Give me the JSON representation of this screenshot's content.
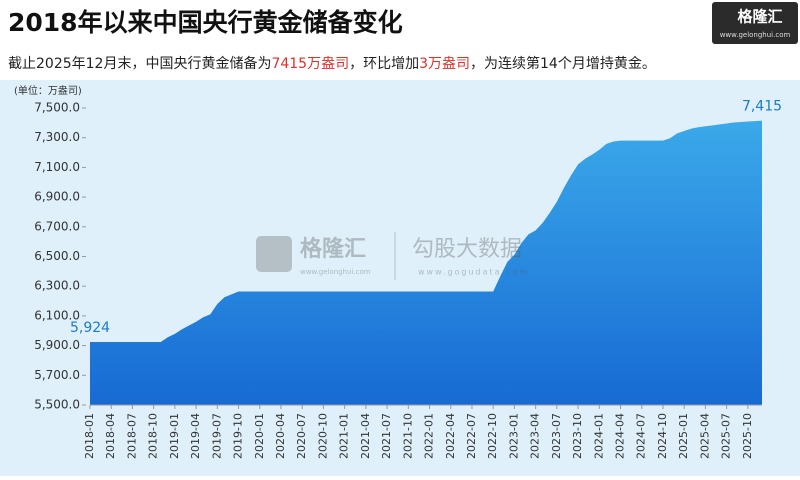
{
  "header": {
    "title": "2018年以来中国央行黄金储备变化",
    "logo": "格隆汇",
    "logo_url": "www.gelonghui.com",
    "subtitle": [
      "截止2025年12月末，中国央行黄金储备为",
      "7415万盎司",
      "，环比增加",
      "3万盎司",
      "，为连续第14个月增持黄金。"
    ]
  },
  "watermark": {
    "brand": "格隆汇",
    "brand_url": "www.gelonghui.com",
    "data_brand": "勾股大数据",
    "data_url": "www.gogudata.com"
  },
  "chart_data": {
    "type": "area",
    "y_label": "(单位：万盎司)",
    "color": "#2e8fe0",
    "categories": [
      "2018-01",
      null,
      null,
      "2018-04",
      null,
      null,
      "2018-07",
      null,
      null,
      "2018-10",
      null,
      null,
      "2019-01",
      null,
      null,
      "2019-04",
      null,
      null,
      "2019-07",
      null,
      null,
      "2019-10",
      null,
      null,
      "2020-01",
      null,
      null,
      "2020-04",
      null,
      null,
      "2020-07",
      null,
      null,
      "2020-10",
      null,
      null,
      "2021-01",
      null,
      null,
      "2021-04",
      null,
      null,
      "2021-07",
      null,
      null,
      "2021-10",
      null,
      null,
      "2022-01",
      null,
      null,
      "2022-04",
      null,
      null,
      "2022-07",
      null,
      null,
      "2022-10",
      null,
      null,
      "2023-01",
      null,
      null,
      "2023-04",
      null,
      null,
      "2023-07",
      null,
      null,
      "2023-10",
      null,
      null,
      "2024-01",
      null,
      null,
      "2024-04",
      null,
      null,
      "2024-07",
      null,
      null,
      "2024-10",
      null,
      null,
      "2025-01",
      null,
      null,
      "2025-04",
      null,
      null,
      "2025-07",
      null,
      null,
      "2025-10",
      null,
      null
    ],
    "values": [
      5924,
      5924,
      5924,
      5924,
      5924,
      5924,
      5924,
      5924,
      5924,
      5924,
      5924,
      5956,
      5979,
      6010,
      6035,
      6061,
      6091,
      6110,
      6180,
      6226,
      6245,
      6264,
      6264,
      6264,
      6264,
      6264,
      6264,
      6264,
      6264,
      6264,
      6264,
      6264,
      6264,
      6264,
      6264,
      6264,
      6264,
      6264,
      6264,
      6264,
      6264,
      6264,
      6264,
      6264,
      6264,
      6264,
      6264,
      6264,
      6264,
      6264,
      6264,
      6264,
      6264,
      6264,
      6264,
      6264,
      6264,
      6264,
      6367,
      6464,
      6512,
      6592,
      6650,
      6676,
      6727,
      6795,
      6869,
      6962,
      7046,
      7120,
      7158,
      7187,
      7219,
      7258,
      7274,
      7280,
      7280,
      7280,
      7280,
      7280,
      7280,
      7280,
      7296,
      7329,
      7345,
      7361,
      7370,
      7377,
      7383,
      7390,
      7396,
      7402,
      7406,
      7409,
      7412,
      7415
    ],
    "value_labels": [
      "5,924",
      null,
      null,
      null,
      null,
      null,
      null,
      null,
      null,
      null,
      null,
      null,
      null,
      null,
      null,
      null,
      null,
      null,
      null,
      null,
      null,
      null,
      null,
      null,
      null,
      null,
      null,
      null,
      null,
      null,
      null,
      null,
      null,
      null,
      null,
      null,
      null,
      null,
      null,
      null,
      null,
      null,
      null,
      null,
      null,
      null,
      null,
      null,
      null,
      null,
      null,
      null,
      null,
      null,
      null,
      null,
      null,
      null,
      null,
      null,
      null,
      null,
      null,
      null,
      null,
      null,
      null,
      null,
      null,
      null,
      null,
      null,
      null,
      null,
      null,
      null,
      null,
      null,
      null,
      null,
      null,
      null,
      null,
      null,
      null,
      null,
      null,
      null,
      null,
      null,
      null,
      null,
      null,
      null,
      null,
      "7,415"
    ],
    "ylim": [
      5500,
      7500
    ],
    "yticks": [
      {
        "value": 5500,
        "label": "5,500.0"
      },
      {
        "value": 5700,
        "label": "5,700.0"
      },
      {
        "value": 5900,
        "label": "5,900.0"
      },
      {
        "value": 6100,
        "label": "6,100.0"
      },
      {
        "value": 6300,
        "label": "6,300.0"
      },
      {
        "value": 6500,
        "label": "6,500.0"
      },
      {
        "value": 6700,
        "label": "6,700.0"
      },
      {
        "value": 6900,
        "label": "6,900.0"
      },
      {
        "value": 7100,
        "label": "7,100.0"
      },
      {
        "value": 7300,
        "label": "7,300.0"
      },
      {
        "value": 7500,
        "label": "7,500.0"
      }
    ],
    "grid": false
  }
}
